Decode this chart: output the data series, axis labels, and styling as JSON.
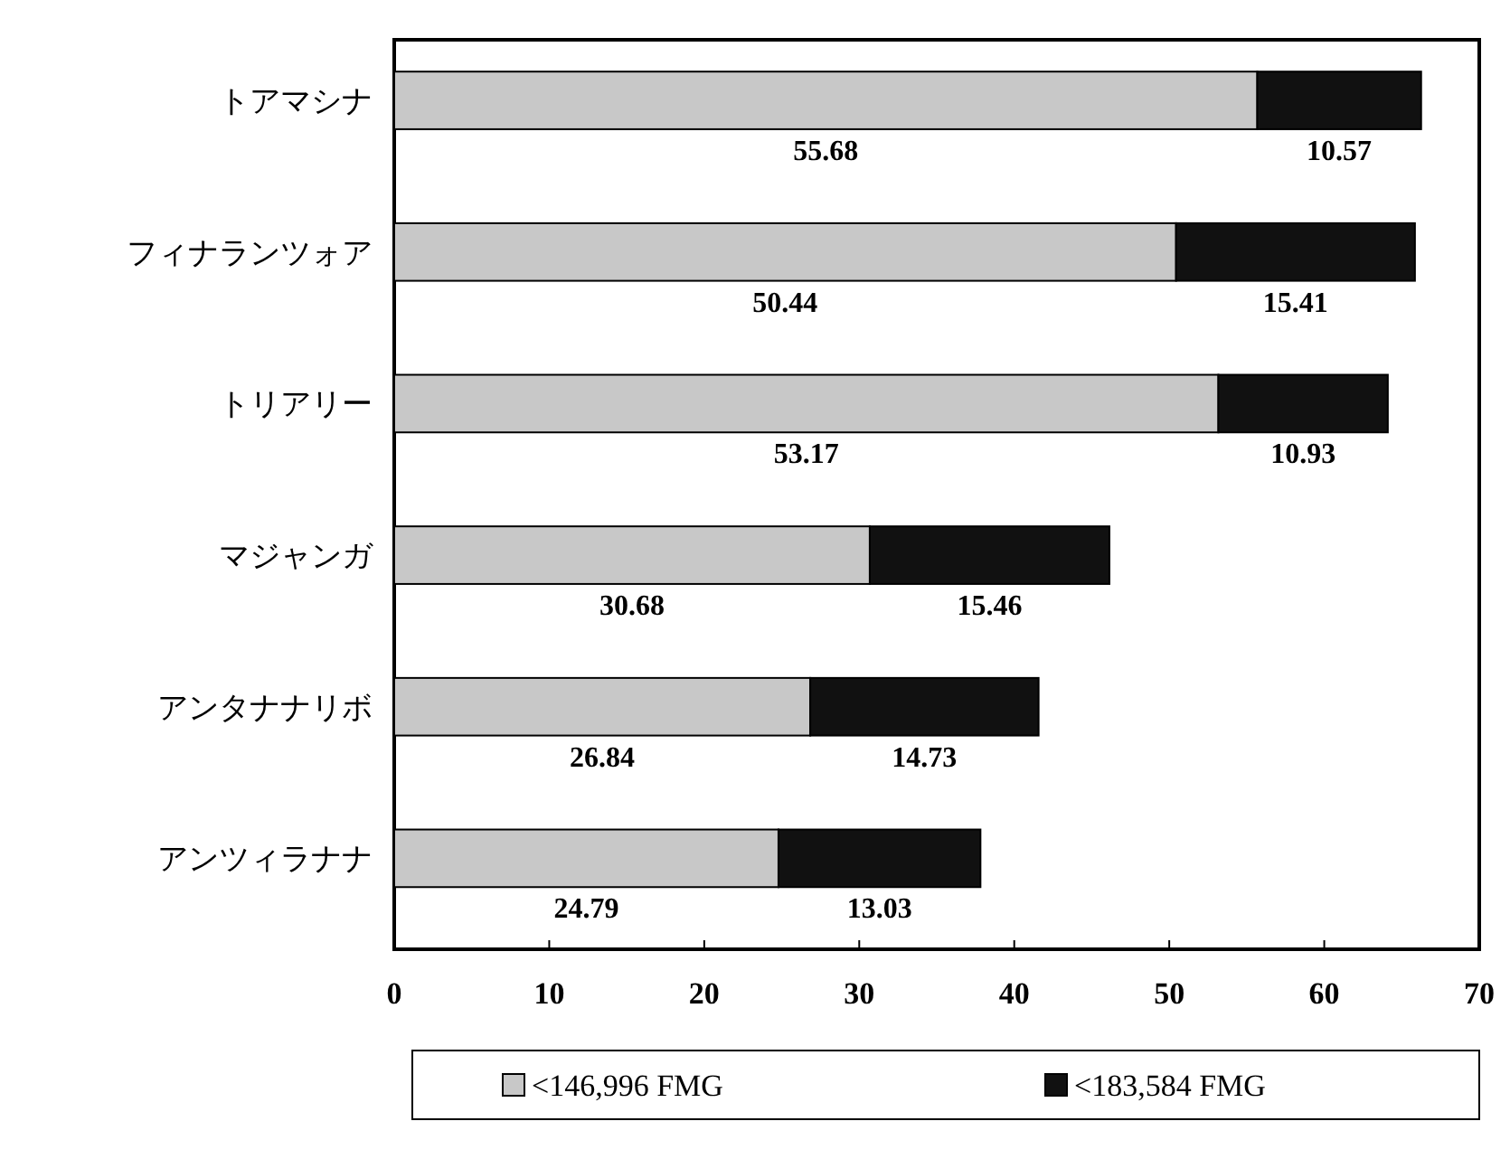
{
  "chart_data": {
    "type": "bar",
    "orientation": "horizontal",
    "stacked": true,
    "categories": [
      "トアマシナ",
      "フィナランツォア",
      "トリアリー",
      "マジャンガ",
      "アンタナナリボ",
      "アンツィラナナ"
    ],
    "series": [
      {
        "name": "<146,996 FMG",
        "color": "#c8c8c8",
        "values": [
          55.68,
          50.44,
          53.17,
          30.68,
          26.84,
          24.79
        ],
        "value_labels": [
          "55.68",
          "50.44",
          "53.17",
          "30.68",
          "26.84",
          "24.79"
        ]
      },
      {
        "name": "<183,584 FMG",
        "color": "#111111",
        "values": [
          10.57,
          15.41,
          10.93,
          15.46,
          14.73,
          13.03
        ],
        "value_labels": [
          "10.57",
          "15.41",
          "10.93",
          "15.46",
          "14.73",
          "13.03"
        ]
      }
    ],
    "xlim": [
      0,
      70
    ],
    "xticks": [
      0,
      10,
      20,
      30,
      40,
      50,
      60,
      70
    ],
    "legend": "bottom"
  }
}
